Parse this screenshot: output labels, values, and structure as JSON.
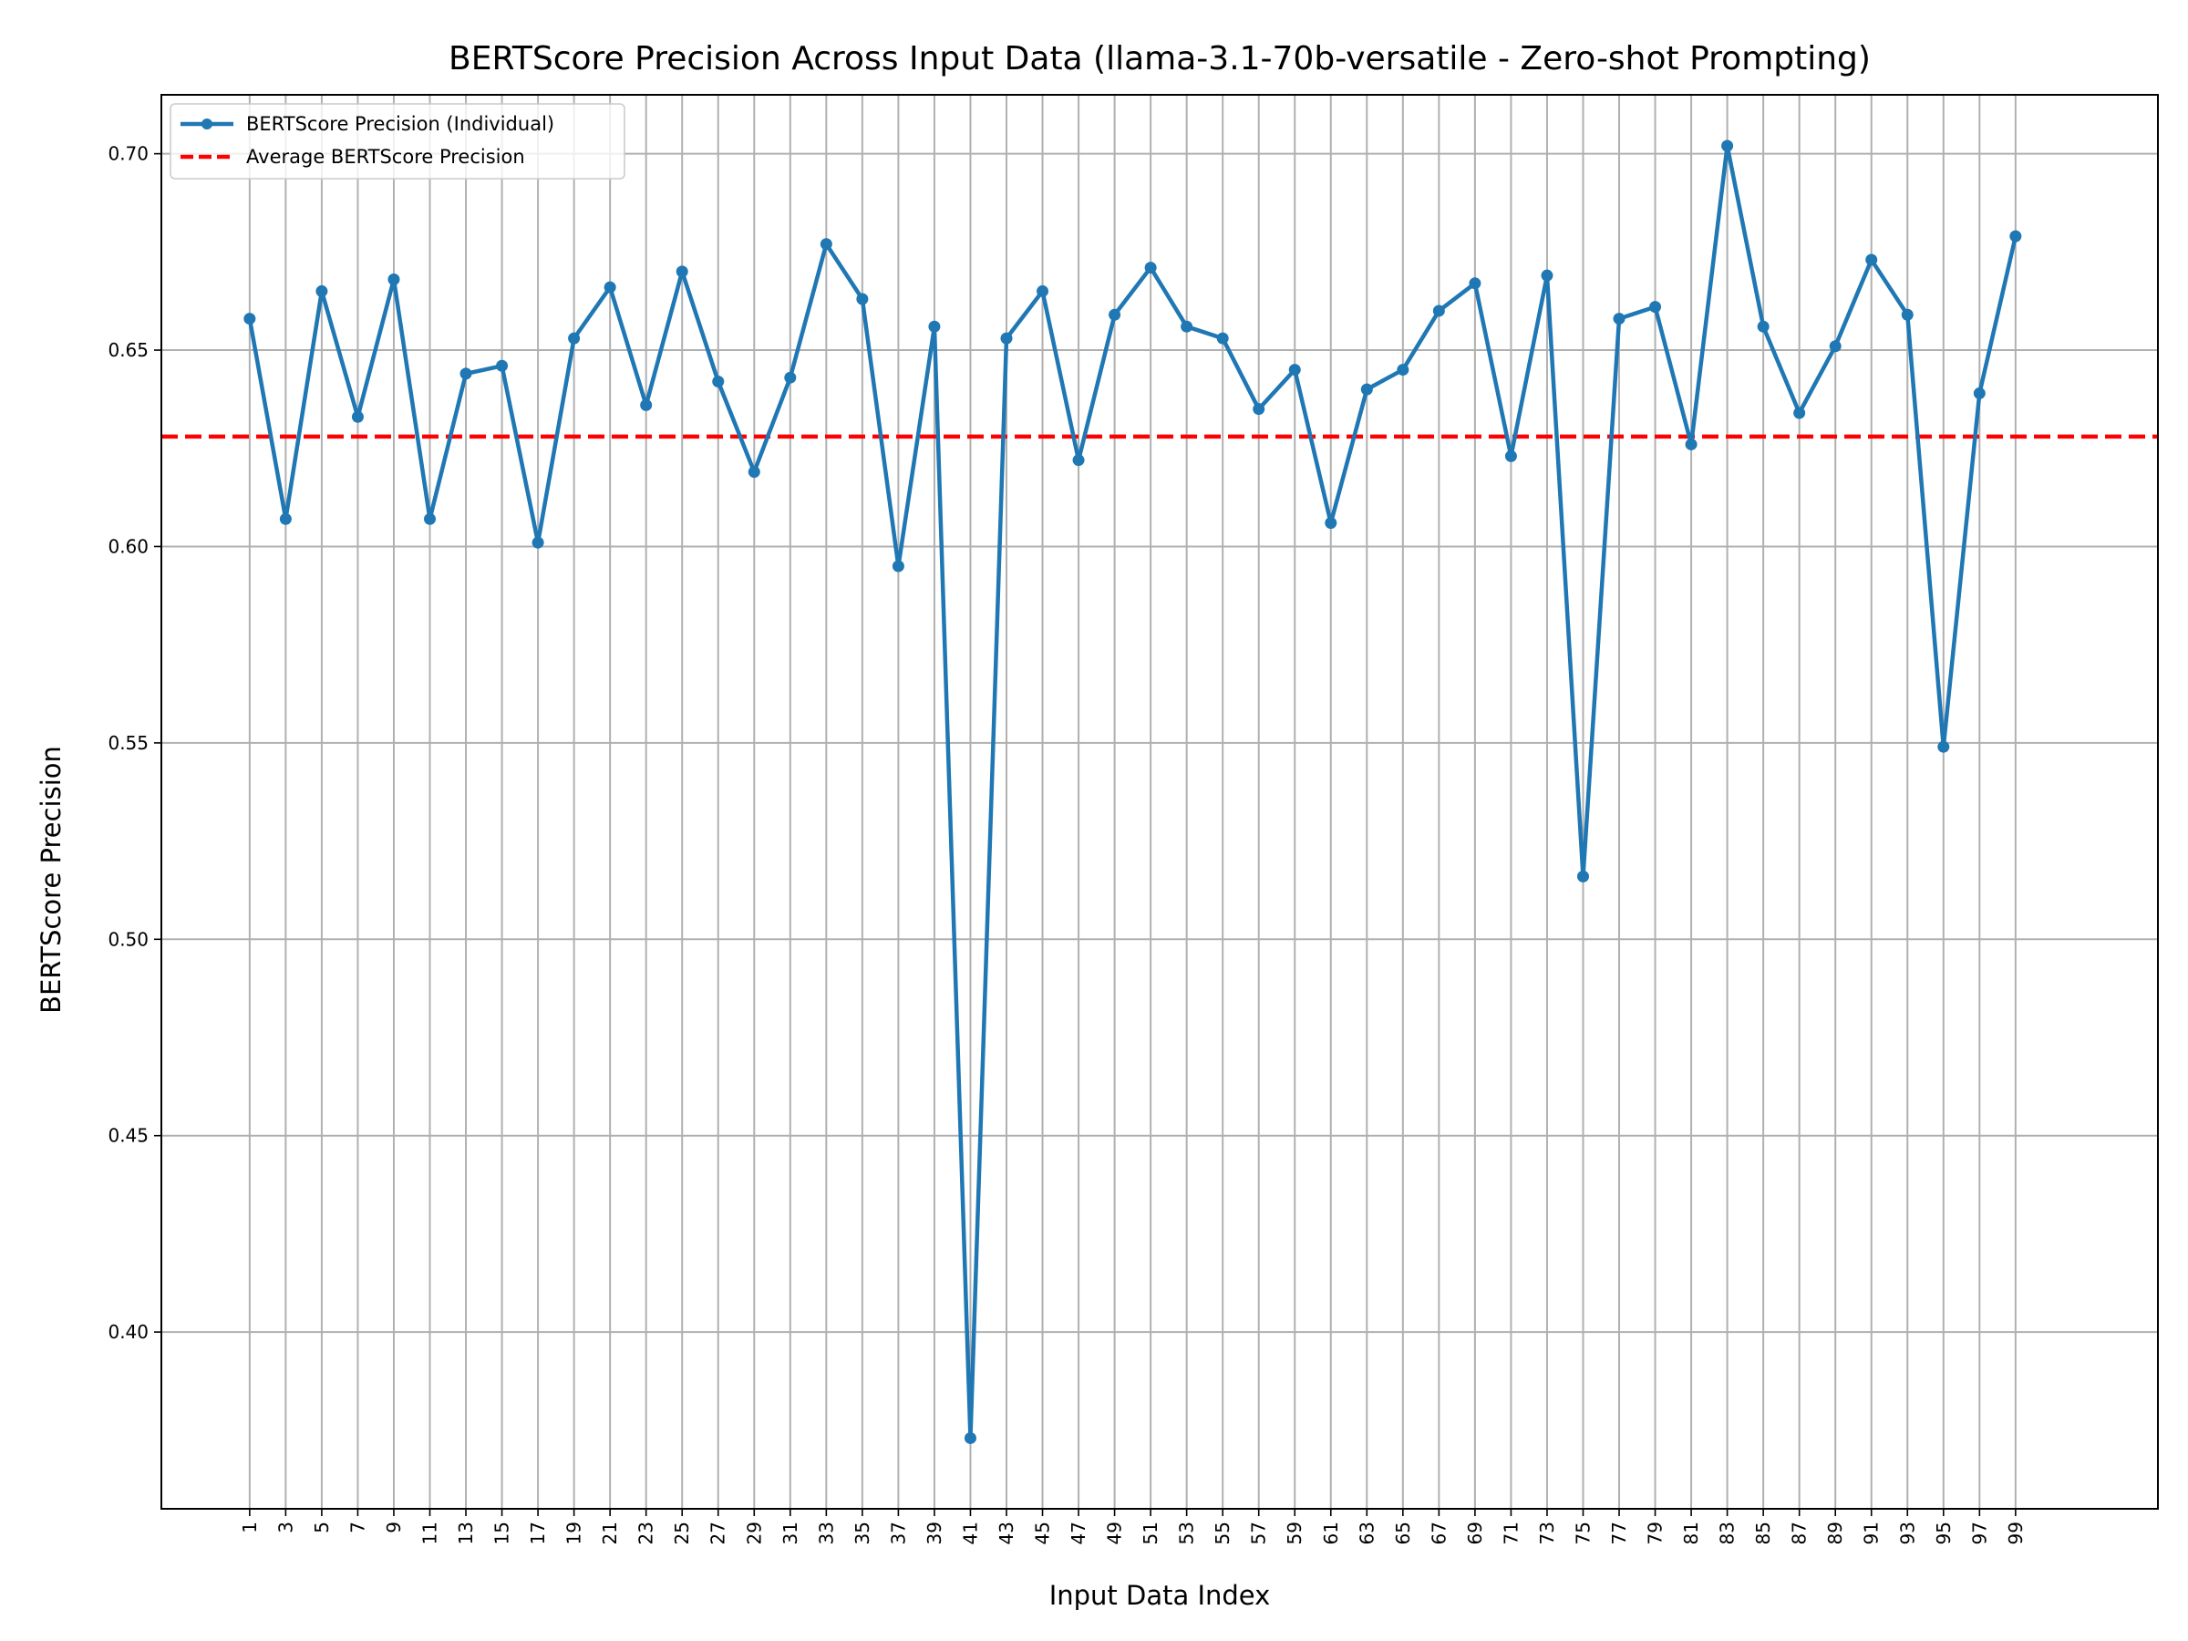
{
  "chart_data": {
    "type": "line",
    "title": "BERTScore Precision Across Input Data (llama-3.1-70b-versatile - Zero-shot Prompting)",
    "xlabel": "Input Data Index",
    "ylabel": "BERTScore Precision",
    "xlim": [
      -3.9,
      106.9
    ],
    "ylim": [
      0.355,
      0.715
    ],
    "grid": true,
    "legend_position": "upper-left",
    "x_ticks": [
      1,
      3,
      5,
      7,
      9,
      11,
      13,
      15,
      17,
      19,
      21,
      23,
      25,
      27,
      29,
      31,
      33,
      35,
      37,
      39,
      41,
      43,
      45,
      47,
      49,
      51,
      53,
      55,
      57,
      59,
      61,
      63,
      65,
      67,
      69,
      71,
      73,
      75,
      77,
      79,
      81,
      83,
      85,
      87,
      89,
      91,
      93,
      95,
      97,
      99
    ],
    "x_tick_labels": [
      "1",
      "3",
      "5",
      "7",
      "9",
      "11",
      "13",
      "15",
      "17",
      "19",
      "21",
      "23",
      "25",
      "27",
      "29",
      "31",
      "33",
      "35",
      "37",
      "39",
      "41",
      "43",
      "45",
      "47",
      "49",
      "51",
      "53",
      "55",
      "57",
      "59",
      "61",
      "63",
      "65",
      "67",
      "69",
      "71",
      "73",
      "75",
      "77",
      "79",
      "81",
      "83",
      "85",
      "87",
      "89",
      "91",
      "93",
      "95",
      "97",
      "99"
    ],
    "y_ticks": [
      0.4,
      0.45,
      0.5,
      0.55,
      0.6,
      0.65,
      0.7
    ],
    "y_tick_labels": [
      "0.40",
      "0.45",
      "0.50",
      "0.55",
      "0.60",
      "0.65",
      "0.70"
    ],
    "series": [
      {
        "name": "BERTScore Precision (Individual)",
        "color": "#1f77b4",
        "style": "solid-with-markers",
        "x": [
          1,
          3,
          5,
          7,
          9,
          11,
          13,
          15,
          17,
          19,
          21,
          23,
          25,
          27,
          29,
          31,
          33,
          35,
          37,
          39,
          41,
          43,
          45,
          47,
          49,
          51,
          53,
          55,
          57,
          59,
          61,
          63,
          65,
          67,
          69,
          71,
          73,
          75,
          77,
          79,
          81,
          83,
          85,
          87,
          89,
          91,
          93,
          95,
          97,
          99
        ],
        "values": [
          0.658,
          0.607,
          0.665,
          0.633,
          0.668,
          0.607,
          0.644,
          0.646,
          0.601,
          0.653,
          0.666,
          0.636,
          0.67,
          0.642,
          0.619,
          0.643,
          0.677,
          0.663,
          0.595,
          0.656,
          0.373,
          0.653,
          0.665,
          0.622,
          0.659,
          0.671,
          0.656,
          0.653,
          0.635,
          0.645,
          0.606,
          0.64,
          0.645,
          0.66,
          0.667,
          0.623,
          0.669,
          0.516,
          0.658,
          0.661,
          0.626,
          0.702,
          0.656,
          0.634,
          0.651,
          0.673,
          0.659,
          0.549,
          0.639,
          0.679
        ]
      },
      {
        "name": "Average BERTScore Precision",
        "color": "#ff0000",
        "style": "dashed",
        "values": [
          0.628
        ]
      }
    ]
  }
}
